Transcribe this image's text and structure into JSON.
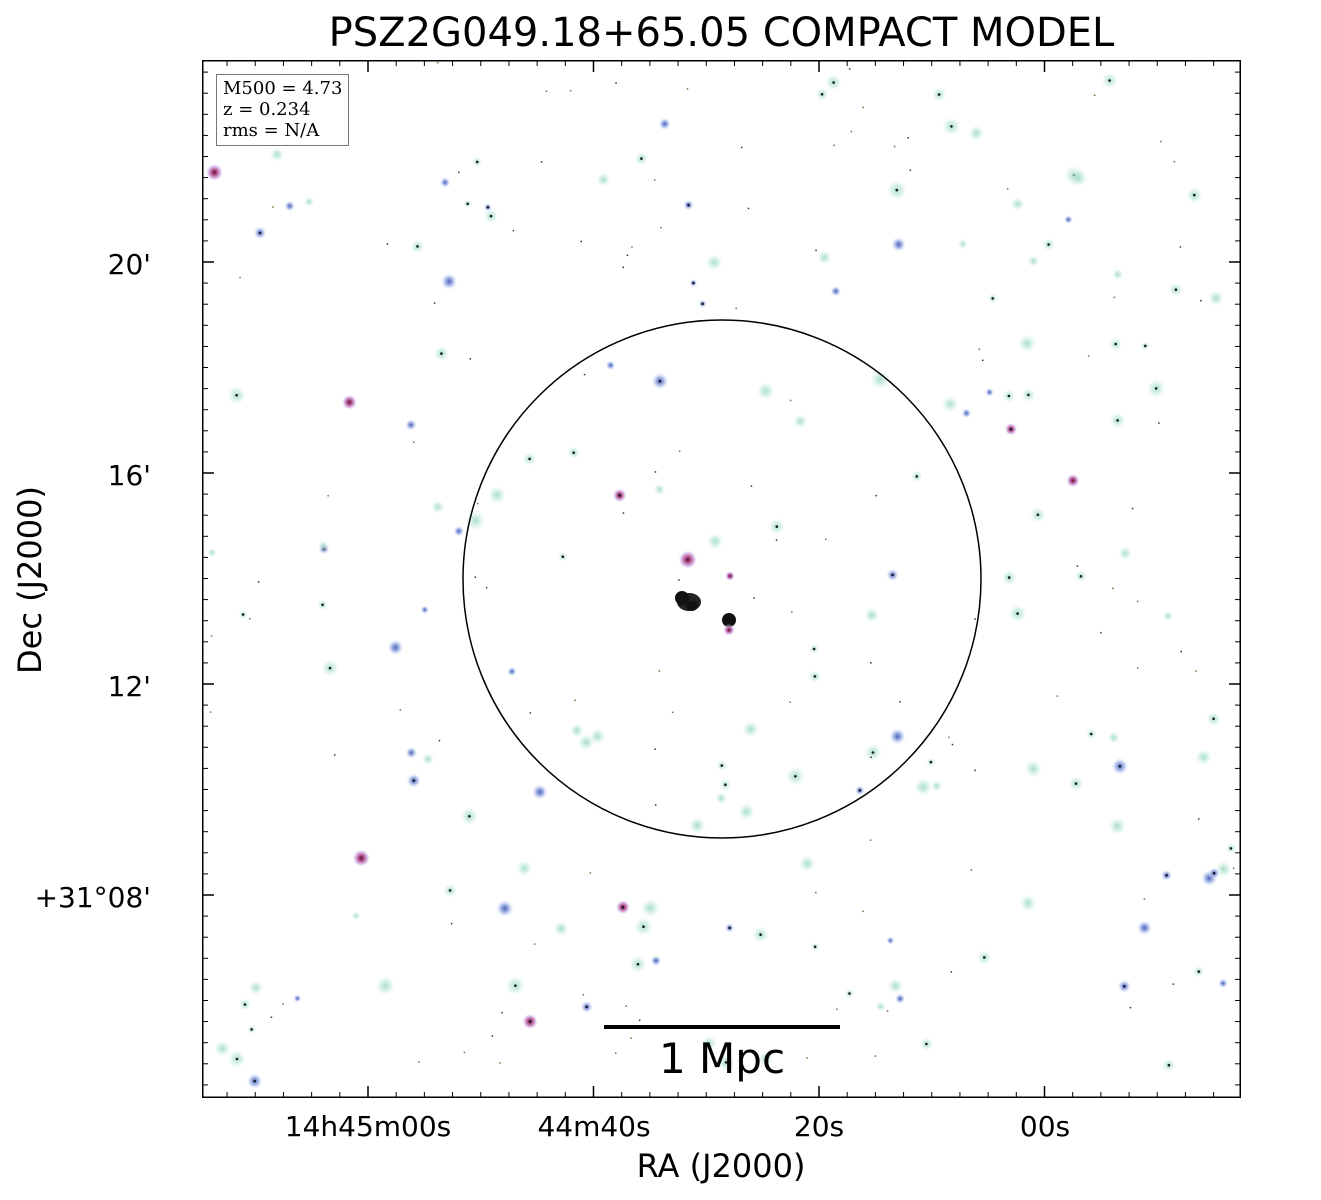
{
  "title": "PSZ2G049.18+65.05 COMPACT MODEL",
  "info_box": {
    "m500": "M500 = 4.73",
    "z": "z = 0.234",
    "rms": "rms = N/A"
  },
  "axes": {
    "xlabel": "RA (J2000)",
    "ylabel": "Dec (J2000)",
    "x_ticks": [
      "14h45m00s",
      "44m40s",
      "20s",
      "00s"
    ],
    "y_ticks": [
      "20'",
      "16'",
      "12'",
      "+31°08'"
    ]
  },
  "scale_bar": {
    "label": "1 Mpc"
  },
  "colors": {
    "source_glow": "#bfe6d8",
    "source_core": "#6a7fc8",
    "source_magenta": "#c04080",
    "frame": "#000000"
  }
}
